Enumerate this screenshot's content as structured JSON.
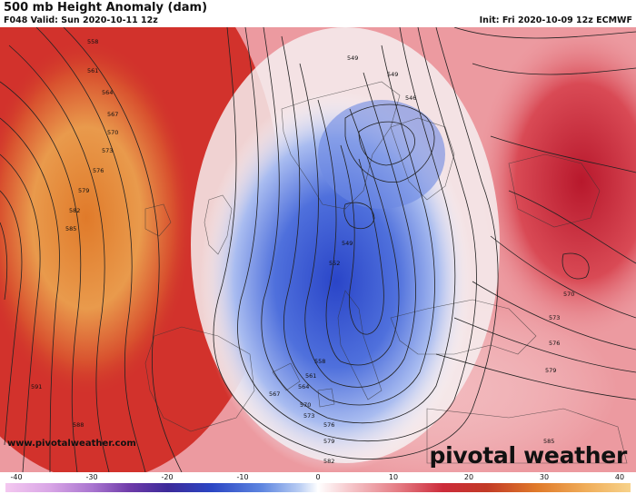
{
  "header": {
    "title": "500 mb Height Anomaly (dam)",
    "valid": "F048 Valid: Sun 2020-10-11 12z",
    "init": "Init: Fri 2020-10-09 12z ECMWF"
  },
  "footer": {
    "site": "www.pivotalweather.com",
    "brand": "pivotal weather"
  },
  "colorbar": {
    "min": -40,
    "max": 40,
    "ticks": [
      "-40",
      "-30",
      "-20",
      "-10",
      "0",
      "10",
      "20",
      "30",
      "40"
    ]
  },
  "contour_labels": [
    "558",
    "561",
    "564",
    "567",
    "570",
    "573",
    "576",
    "579",
    "582",
    "585",
    "591",
    "588",
    "549",
    "549",
    "546",
    "549",
    "552",
    "558",
    "561",
    "564",
    "567",
    "570",
    "573",
    "576",
    "579",
    "582",
    "585",
    "570",
    "573",
    "576",
    "579"
  ]
}
